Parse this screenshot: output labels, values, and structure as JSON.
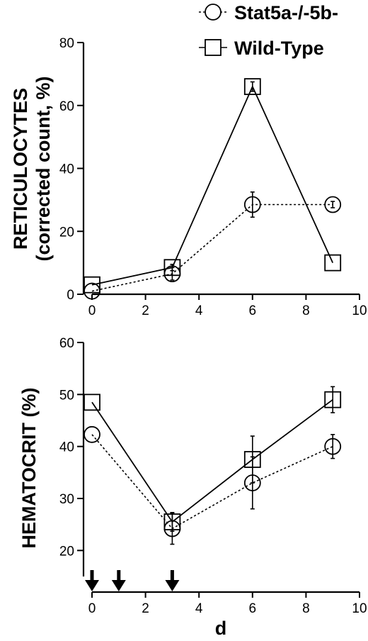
{
  "legend": [
    {
      "label": "Stat5a-/-5b-",
      "marker": "circle",
      "line": "dashed"
    },
    {
      "label": "Wild-Type",
      "marker": "square",
      "line": "solid"
    }
  ],
  "xlabel": "d",
  "arrows_at_days": [
    0,
    1,
    3
  ],
  "chart_data": [
    {
      "type": "line",
      "ylabel_line1": "RETICULOCYTES",
      "ylabel_line2": "(corrected count, %)",
      "xlim": [
        0,
        10
      ],
      "ylim": [
        0,
        80
      ],
      "xticks": [
        0,
        2,
        4,
        6,
        8,
        10
      ],
      "yticks": [
        0,
        20,
        40,
        60,
        80
      ],
      "series": [
        {
          "name": "Stat5a-/-5b-",
          "marker": "circle",
          "dash": true,
          "x": [
            0,
            3,
            6,
            9
          ],
          "y": [
            1,
            6.5,
            28.5,
            28.5
          ],
          "err": [
            0,
            2,
            4,
            1
          ]
        },
        {
          "name": "Wild-Type",
          "marker": "square",
          "dash": false,
          "x": [
            0,
            3,
            6,
            9
          ],
          "y": [
            3,
            8.5,
            66,
            10
          ],
          "err": [
            0,
            1,
            1.5,
            0
          ]
        }
      ]
    },
    {
      "type": "line",
      "ylabel_line1": "HEMATOCRIT (%)",
      "ylabel_line2": "",
      "xlim": [
        0,
        10
      ],
      "ylim": [
        15,
        60
      ],
      "xticks": [
        0,
        2,
        4,
        6,
        8,
        10
      ],
      "yticks": [
        20,
        30,
        40,
        50,
        60
      ],
      "series": [
        {
          "name": "Stat5a-/-5b-",
          "marker": "circle",
          "dash": true,
          "x": [
            0,
            3,
            6,
            9
          ],
          "y": [
            42.3,
            24.2,
            33,
            40
          ],
          "err": [
            0,
            3,
            5,
            2.3
          ]
        },
        {
          "name": "Wild-Type",
          "marker": "square",
          "dash": false,
          "x": [
            0,
            3,
            6,
            9
          ],
          "y": [
            48.5,
            25.5,
            37.5,
            49
          ],
          "err": [
            0,
            1.8,
            4.5,
            2.5
          ]
        }
      ]
    }
  ]
}
